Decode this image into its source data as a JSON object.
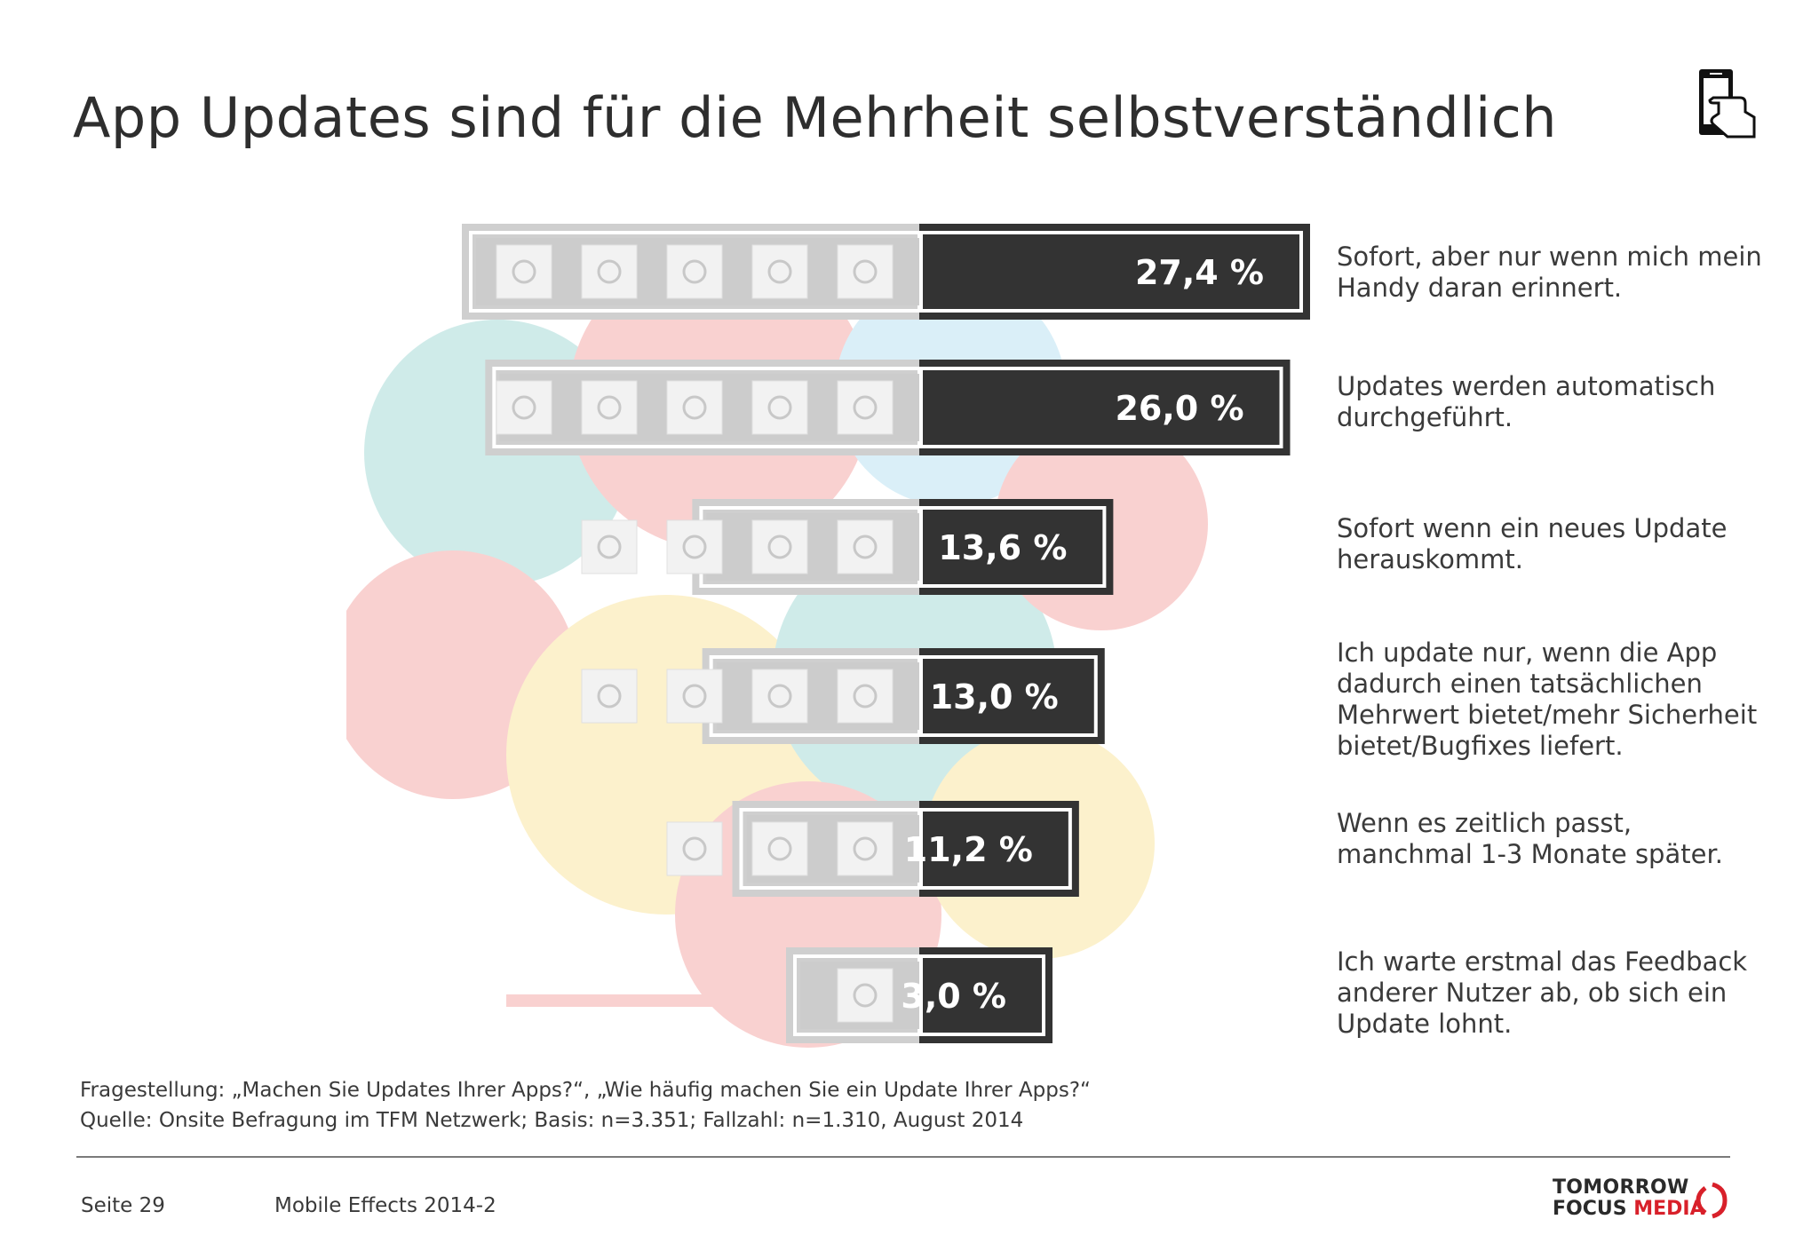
{
  "page": {
    "title": "App Updates sind für die Mehrheit selbstverständlich",
    "footnote_question": "Fragestellung: „Machen Sie Updates Ihrer Apps?“, „Wie häufig machen Sie ein Update Ihrer Apps?“",
    "footnote_source": "Quelle: Onsite Befragung im TFM Netzwerk; Basis: n=3.351; Fallzahl: n=1.310, August 2014",
    "page_number": "Seite 29",
    "report_name": "Mobile Effects 2014-2",
    "logo_line1": "TOMORROW",
    "logo_line2a": "FOCUS ",
    "logo_line2b": "MEDIA"
  },
  "colors": {
    "bar_dark": "#333333",
    "bar_light": "#cfcfcf",
    "brand_red": "#d8202a"
  },
  "icons": [
    "smartphone-hand-icon",
    "app-tile-icon"
  ],
  "chart_data": {
    "type": "bar",
    "orientation": "horizontal",
    "unit": "%",
    "categories": [
      "Sofort, aber nur wenn mich mein Handy daran erinnert.",
      "Updates werden automatisch durchgeführt.",
      "Sofort wenn ein neues Update herauskommt.",
      "Ich update nur, wenn die App dadurch einen tatsächlichen Mehrwert bietet/mehr Sicherheit bietet/Bugfixes liefert.",
      "Wenn es zeitlich passt, manchmal 1-3 Monate später.",
      "Ich warte erstmal das Feedback anderer Nutzer ab, ob sich ein Update lohnt."
    ],
    "values": [
      27.4,
      26.0,
      13.6,
      13.0,
      11.2,
      3.0
    ],
    "value_labels": [
      "27,4 %",
      "26,0 %",
      "13,6 %",
      "13,0 %",
      "11,2 %",
      "3,0 %"
    ],
    "label_lines": [
      "Sofort, aber nur wenn mich mein\nHandy daran erinnert.",
      "Updates werden automatisch\ndurchgeführt.",
      "Sofort wenn ein neues Update\nherauskommt.",
      "Ich update nur, wenn die App\ndadurch einen tatsächlichen\nMehrwert bietet/mehr Sicherheit\nbietet/Bugfixes liefert.",
      "Wenn es zeitlich passt,\nmanchmal 1-3 Monate später.",
      "Ich warte erstmal das Feedback\nanderer Nutzer ab, ob sich ein\nUpdate lohnt."
    ],
    "icon_counts": [
      5,
      5,
      4,
      4,
      3,
      1
    ],
    "legend": "none",
    "grid": false
  }
}
